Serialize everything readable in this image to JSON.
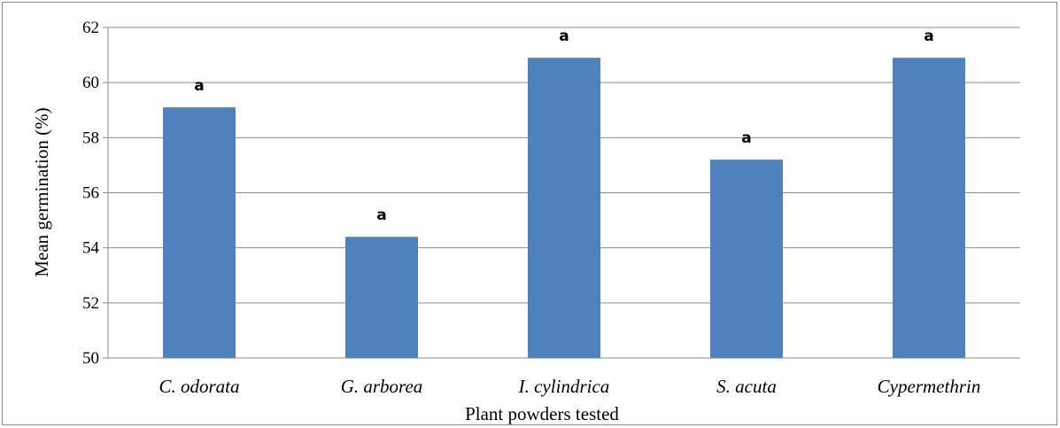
{
  "chart_data": {
    "type": "bar",
    "title": "",
    "xlabel": "Plant powders tested",
    "ylabel": "Mean germination (%)",
    "categories": [
      "C. odorata",
      "G. arborea",
      "I. cylindrica",
      "S. acuta",
      "Cypermethrin"
    ],
    "values": [
      59.1,
      54.4,
      60.9,
      57.2,
      60.9
    ],
    "significance_labels": [
      "a",
      "a",
      "a",
      "a",
      "a"
    ],
    "ylim": [
      50,
      62
    ],
    "yticks": [
      50,
      52,
      54,
      56,
      58,
      60,
      62
    ],
    "grid": true,
    "legend": "none",
    "bar_color": "#4F81BD",
    "grid_color": "#8c8c8c"
  }
}
